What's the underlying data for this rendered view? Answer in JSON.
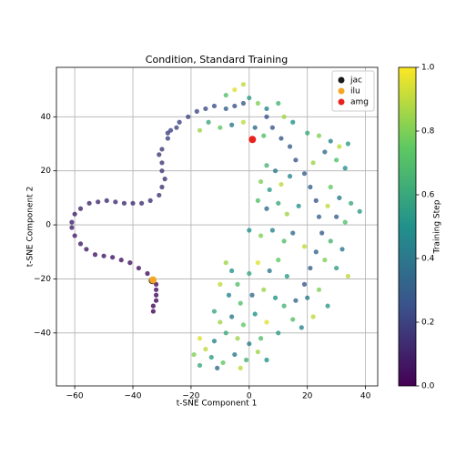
{
  "chart_data": {
    "type": "scatter",
    "title": "Condition, Standard Training",
    "xlabel": "t-SNE Component 1",
    "ylabel": "t-SNE Component 2",
    "xlim": [
      -66.3,
      44.2
    ],
    "ylim": [
      -59.6,
      58.3
    ],
    "xticks": [
      {
        "value": -60,
        "label": "−60"
      },
      {
        "value": -40,
        "label": "−40"
      },
      {
        "value": -20,
        "label": "−20"
      },
      0,
      20,
      40
    ],
    "yticks": [
      {
        "value": -40,
        "label": "−40"
      },
      {
        "value": -20,
        "label": "−20"
      },
      0,
      20,
      40
    ],
    "grid": true,
    "legend": "upper right",
    "colorbar": {
      "label": "Training Step",
      "lim": [
        0,
        1
      ],
      "ticks": [
        {
          "value": 0,
          "label": "0.0"
        },
        {
          "value": 0.2,
          "label": "0.2"
        },
        {
          "value": 0.4,
          "label": "0.4"
        },
        {
          "value": 0.6,
          "label": "0.6"
        },
        {
          "value": 0.8,
          "label": "0.8"
        },
        {
          "value": 1,
          "label": "1.0"
        }
      ]
    },
    "points": [
      {
        "x": -33,
        "y": -32,
        "c": 0
      },
      {
        "x": -33,
        "y": -30,
        "c": 0.01
      },
      {
        "x": -32,
        "y": -28,
        "c": 0.02
      },
      {
        "x": -32,
        "y": -26,
        "c": 0.02
      },
      {
        "x": -32,
        "y": -24,
        "c": 0.03
      },
      {
        "x": -32,
        "y": -22,
        "c": 0.03
      },
      {
        "x": -33,
        "y": -20,
        "c": 0.04
      },
      {
        "x": -35,
        "y": -18,
        "c": 0.04
      },
      {
        "x": -38,
        "y": -16,
        "c": 0.05
      },
      {
        "x": -41,
        "y": -14,
        "c": 0.05
      },
      {
        "x": -44,
        "y": -13,
        "c": 0.06
      },
      {
        "x": -47,
        "y": -12,
        "c": 0.06
      },
      {
        "x": -50,
        "y": -11.5,
        "c": 0.07
      },
      {
        "x": -53,
        "y": -11,
        "c": 0.07
      },
      {
        "x": -56,
        "y": -9,
        "c": 0.08
      },
      {
        "x": -58,
        "y": -7,
        "c": 0.08
      },
      {
        "x": -60,
        "y": -4,
        "c": 0.09
      },
      {
        "x": -61,
        "y": -1,
        "c": 0.09
      },
      {
        "x": -61,
        "y": 1,
        "c": 0.1
      },
      {
        "x": -60,
        "y": 4,
        "c": 0.1
      },
      {
        "x": -58,
        "y": 6,
        "c": 0.11
      },
      {
        "x": -55,
        "y": 8,
        "c": 0.11
      },
      {
        "x": -52,
        "y": 8.5,
        "c": 0.12
      },
      {
        "x": -49,
        "y": 9,
        "c": 0.12
      },
      {
        "x": -46,
        "y": 8.5,
        "c": 0.13
      },
      {
        "x": -43,
        "y": 8,
        "c": 0.13
      },
      {
        "x": -40,
        "y": 8,
        "c": 0.14
      },
      {
        "x": -37,
        "y": 8,
        "c": 0.14
      },
      {
        "x": -34,
        "y": 9,
        "c": 0.15
      },
      {
        "x": -31,
        "y": 11,
        "c": 0.15
      },
      {
        "x": -30,
        "y": 14,
        "c": 0.16
      },
      {
        "x": -29,
        "y": 17,
        "c": 0.16
      },
      {
        "x": -30,
        "y": 20,
        "c": 0.17
      },
      {
        "x": -30,
        "y": 23,
        "c": 0.17
      },
      {
        "x": -31,
        "y": 26,
        "c": 0.18
      },
      {
        "x": -30,
        "y": 28,
        "c": 0.18
      },
      {
        "x": -28,
        "y": 32,
        "c": 0.19
      },
      {
        "x": -28,
        "y": 34,
        "c": 0.19
      },
      {
        "x": -27,
        "y": 35,
        "c": 0.2
      },
      {
        "x": -25,
        "y": 36,
        "c": 0.21
      },
      {
        "x": -24,
        "y": 38,
        "c": 0.2
      },
      {
        "x": -21,
        "y": 40,
        "c": 0.21
      },
      {
        "x": -18,
        "y": 42,
        "c": 0.22
      },
      {
        "x": -15,
        "y": 43,
        "c": 0.23
      },
      {
        "x": -12,
        "y": 44,
        "c": 0.24
      },
      {
        "x": -8,
        "y": 43,
        "c": 0.3
      },
      {
        "x": -5,
        "y": 44,
        "c": 0.25
      },
      {
        "x": -2,
        "y": 45,
        "c": 0.28
      },
      {
        "x": 6,
        "y": 40,
        "c": 0.25
      },
      {
        "x": 8,
        "y": 36,
        "c": 0.27
      },
      {
        "x": 11,
        "y": 32,
        "c": 0.28
      },
      {
        "x": 14,
        "y": 29,
        "c": 0.3
      },
      {
        "x": 16,
        "y": 24,
        "c": 0.26
      },
      {
        "x": 19,
        "y": 19,
        "c": 0.29
      },
      {
        "x": 21,
        "y": 14,
        "c": 0.31
      },
      {
        "x": 23,
        "y": 9,
        "c": 0.27
      },
      {
        "x": 24,
        "y": 3,
        "c": 0.3
      },
      {
        "x": 25,
        "y": -3,
        "c": 0.28
      },
      {
        "x": 23,
        "y": -10,
        "c": 0.32
      },
      {
        "x": 21,
        "y": -16,
        "c": 0.3
      },
      {
        "x": 19,
        "y": -22,
        "c": 0.27
      },
      {
        "x": 16,
        "y": -28,
        "c": 0.33
      },
      {
        "x": -5,
        "y": 50,
        "c": 0.95
      },
      {
        "x": -2,
        "y": 52,
        "c": 0.9
      },
      {
        "x": -8,
        "y": 48,
        "c": 0.7
      },
      {
        "x": 0,
        "y": 47,
        "c": 0.55
      },
      {
        "x": 3,
        "y": 45,
        "c": 0.8
      },
      {
        "x": 6,
        "y": 43,
        "c": 0.45
      },
      {
        "x": 10,
        "y": 45,
        "c": 0.65
      },
      {
        "x": 12,
        "y": 40,
        "c": 0.85
      },
      {
        "x": 15,
        "y": 38,
        "c": 0.5
      },
      {
        "x": -14,
        "y": 38,
        "c": 0.6
      },
      {
        "x": -10,
        "y": 36,
        "c": 0.75
      },
      {
        "x": -6,
        "y": 37,
        "c": 0.4
      },
      {
        "x": -2,
        "y": 38,
        "c": 0.9
      },
      {
        "x": 2,
        "y": 36,
        "c": 0.35
      },
      {
        "x": 5,
        "y": 33,
        "c": 0.7
      },
      {
        "x": -17,
        "y": 35,
        "c": 0.85
      },
      {
        "x": 20,
        "y": 34,
        "c": 0.6
      },
      {
        "x": 24,
        "y": 33,
        "c": 0.8
      },
      {
        "x": 28,
        "y": 31,
        "c": 0.45
      },
      {
        "x": 31,
        "y": 29,
        "c": 0.9
      },
      {
        "x": 34,
        "y": 30,
        "c": 0.55
      },
      {
        "x": 26,
        "y": 27,
        "c": 0.35
      },
      {
        "x": 30,
        "y": 24,
        "c": 0.7
      },
      {
        "x": 33,
        "y": 21,
        "c": 0.5
      },
      {
        "x": 22,
        "y": 23,
        "c": 0.85
      },
      {
        "x": 6,
        "y": 22,
        "c": 0.65
      },
      {
        "x": 9,
        "y": 20,
        "c": 0.4
      },
      {
        "x": 4,
        "y": 16,
        "c": 0.8
      },
      {
        "x": 7,
        "y": 13,
        "c": 0.55
      },
      {
        "x": 11,
        "y": 15,
        "c": 0.9
      },
      {
        "x": 14,
        "y": 18,
        "c": 0.45
      },
      {
        "x": 3,
        "y": 9,
        "c": 0.7
      },
      {
        "x": 6,
        "y": 6,
        "c": 0.35
      },
      {
        "x": 10,
        "y": 8,
        "c": 0.6
      },
      {
        "x": 13,
        "y": 4,
        "c": 0.85
      },
      {
        "x": 17,
        "y": 7,
        "c": 0.5
      },
      {
        "x": 28,
        "y": 14,
        "c": 0.75
      },
      {
        "x": 31,
        "y": 10,
        "c": 0.4
      },
      {
        "x": 35,
        "y": 8,
        "c": 0.6
      },
      {
        "x": 38,
        "y": 5,
        "c": 0.55
      },
      {
        "x": 27,
        "y": 7,
        "c": 0.9
      },
      {
        "x": 30,
        "y": 3,
        "c": 0.3
      },
      {
        "x": 33,
        "y": 1,
        "c": 0.7
      },
      {
        "x": 0,
        "y": -2,
        "c": 0.5
      },
      {
        "x": 4,
        "y": -4,
        "c": 0.8
      },
      {
        "x": 8,
        "y": -2,
        "c": 0.45
      },
      {
        "x": 12,
        "y": -6,
        "c": 0.7
      },
      {
        "x": 15,
        "y": -3,
        "c": 0.35
      },
      {
        "x": 19,
        "y": -8,
        "c": 0.9
      },
      {
        "x": 28,
        "y": -6,
        "c": 0.65
      },
      {
        "x": 32,
        "y": -9,
        "c": 0.4
      },
      {
        "x": 26,
        "y": -13,
        "c": 0.8
      },
      {
        "x": 30,
        "y": -16,
        "c": 0.55
      },
      {
        "x": 34,
        "y": -19,
        "c": 0.9
      },
      {
        "x": -8,
        "y": -14,
        "c": 0.85
      },
      {
        "x": -6,
        "y": -17,
        "c": 0.5
      },
      {
        "x": -4,
        "y": -22,
        "c": 0.7
      },
      {
        "x": 0,
        "y": -18,
        "c": 0.6
      },
      {
        "x": 3,
        "y": -14,
        "c": 0.95
      },
      {
        "x": 7,
        "y": -17,
        "c": 0.4
      },
      {
        "x": 10,
        "y": -13,
        "c": 0.75
      },
      {
        "x": 13,
        "y": -19,
        "c": 0.55
      },
      {
        "x": -10,
        "y": -22,
        "c": 0.9
      },
      {
        "x": -7,
        "y": -26,
        "c": 0.45
      },
      {
        "x": -3,
        "y": -29,
        "c": 0.7
      },
      {
        "x": 1,
        "y": -26,
        "c": 0.35
      },
      {
        "x": 5,
        "y": -24,
        "c": 0.85
      },
      {
        "x": 9,
        "y": -27,
        "c": 0.5
      },
      {
        "x": 12,
        "y": -30,
        "c": 0.65
      },
      {
        "x": 20,
        "y": -27,
        "c": 0.4
      },
      {
        "x": 24,
        "y": -24,
        "c": 0.8
      },
      {
        "x": 27,
        "y": -30,
        "c": 0.55
      },
      {
        "x": 22,
        "y": -34,
        "c": 0.9
      },
      {
        "x": 18,
        "y": -38,
        "c": 0.45
      },
      {
        "x": 15,
        "y": -35,
        "c": 0.7
      },
      {
        "x": -12,
        "y": -32,
        "c": 0.6
      },
      {
        "x": -10,
        "y": -36,
        "c": 0.85
      },
      {
        "x": -6,
        "y": -34,
        "c": 0.4
      },
      {
        "x": -2,
        "y": -37,
        "c": 0.75
      },
      {
        "x": 2,
        "y": -33,
        "c": 0.5
      },
      {
        "x": 6,
        "y": -36,
        "c": 0.95
      },
      {
        "x": 10,
        "y": -40,
        "c": 0.55
      },
      {
        "x": 4,
        "y": -42,
        "c": 0.7
      },
      {
        "x": 0,
        "y": -44,
        "c": 0.4
      },
      {
        "x": -4,
        "y": -42,
        "c": 0.85
      },
      {
        "x": -8,
        "y": -40,
        "c": 0.6
      },
      {
        "x": -12,
        "y": -43,
        "c": 0.45
      },
      {
        "x": -15,
        "y": -46,
        "c": 0.9
      },
      {
        "x": -17,
        "y": -42,
        "c": 0.95
      },
      {
        "x": -13,
        "y": -49,
        "c": 0.55
      },
      {
        "x": -9,
        "y": -51,
        "c": 0.75
      },
      {
        "x": -5,
        "y": -48,
        "c": 0.4
      },
      {
        "x": -1,
        "y": -50,
        "c": 0.65
      },
      {
        "x": 3,
        "y": -47,
        "c": 0.85
      },
      {
        "x": 6,
        "y": -50,
        "c": 0.5
      },
      {
        "x": -17,
        "y": -52,
        "c": 0.6
      },
      {
        "x": -11,
        "y": -53,
        "c": 0.35
      },
      {
        "x": -19,
        "y": -48,
        "c": 0.8
      },
      {
        "x": -3,
        "y": -53,
        "c": 0.9
      }
    ],
    "series": [
      {
        "name": "jac",
        "color": "#1a1a1a",
        "x": [
          -33.3
        ],
        "y": [
          -20.6
        ]
      },
      {
        "name": "ilu",
        "color": "#f5a623",
        "x": [
          -33.1
        ],
        "y": [
          -20.4
        ]
      },
      {
        "name": "amg",
        "color": "#e8231f",
        "x": [
          1.1
        ],
        "y": [
          31.6
        ]
      }
    ]
  }
}
